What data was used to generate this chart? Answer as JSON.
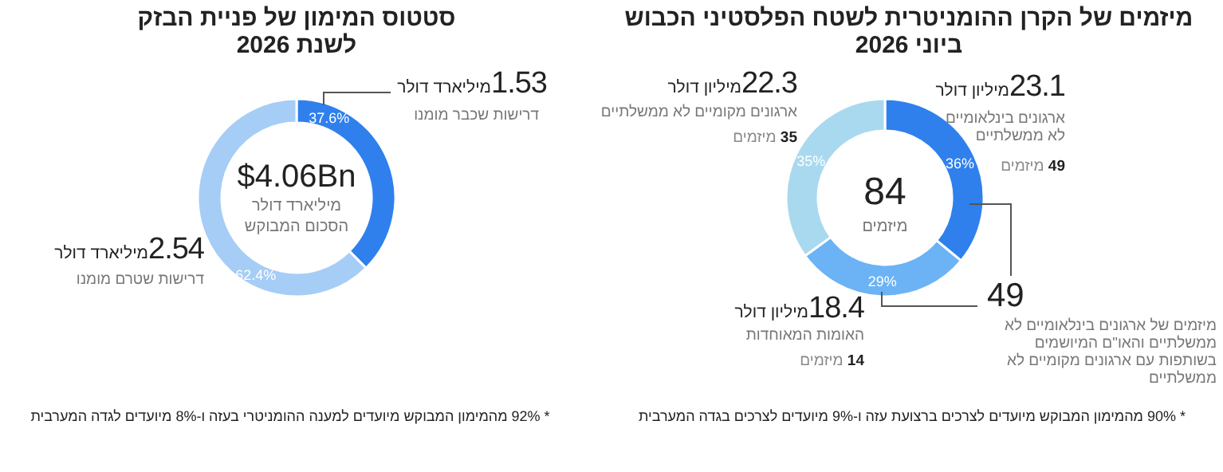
{
  "chart_data": [
    {
      "type": "donut",
      "title": "מיזמים של הקרן ההומניטרית לשטח הפלסטיני הכבוש\nביוני 2026",
      "categories": [
        "ארגונים בינלאומיים לא ממשלתיים",
        "האומות המאוחדות",
        "ארגונים מקומיים לא ממשלתיים"
      ],
      "values": [
        36,
        29,
        35
      ],
      "colors": [
        "#2f80ed",
        "#6bb3f5",
        "#a9d9ee"
      ],
      "value_labels": [
        "36%",
        "29%",
        "35%"
      ],
      "annotations": [
        "23.1 מיליון דולר",
        "49 מיזמים",
        "18.4 מיליון דולר",
        "14 מיזמים",
        "22.3 מיליון דולר",
        "35 מיזמים",
        "84",
        "מיזמים",
        "49",
        "מיזמים של ארגונים בינלאומיים לא ממשלתיים והאו\"ם המיושמים בשותפות עם ארגונים מקומיים לא ממשלתיים",
        "* 90% מהמימון המבוקש מיועדים לצרכים ברצועת עזה ו-9% מיועדים לצרכים בגדה המערבית"
      ]
    },
    {
      "type": "donut",
      "title": "סטטוס המימון של פניית הבזק\nלשנת 2026",
      "categories": [
        "דרישות שכבר מומנו",
        "דרישות שטרם מומנו"
      ],
      "values": [
        37.6,
        62.4
      ],
      "colors": [
        "#2f80ed",
        "#a6cdf6"
      ],
      "value_labels": [
        "37.6%",
        "62.4%"
      ],
      "annotations": [
        "1.53 מיליארד דולר",
        "2.54 מיליארד דולר",
        "$4.06Bn",
        "מיליארד דולר",
        "הסכום המבוקש",
        "* 92% מהמימון המבוקש מיועדים למענה ההומניטרי בעזה ו-8% מיועדים לגדה המערבית"
      ]
    }
  ]
}
